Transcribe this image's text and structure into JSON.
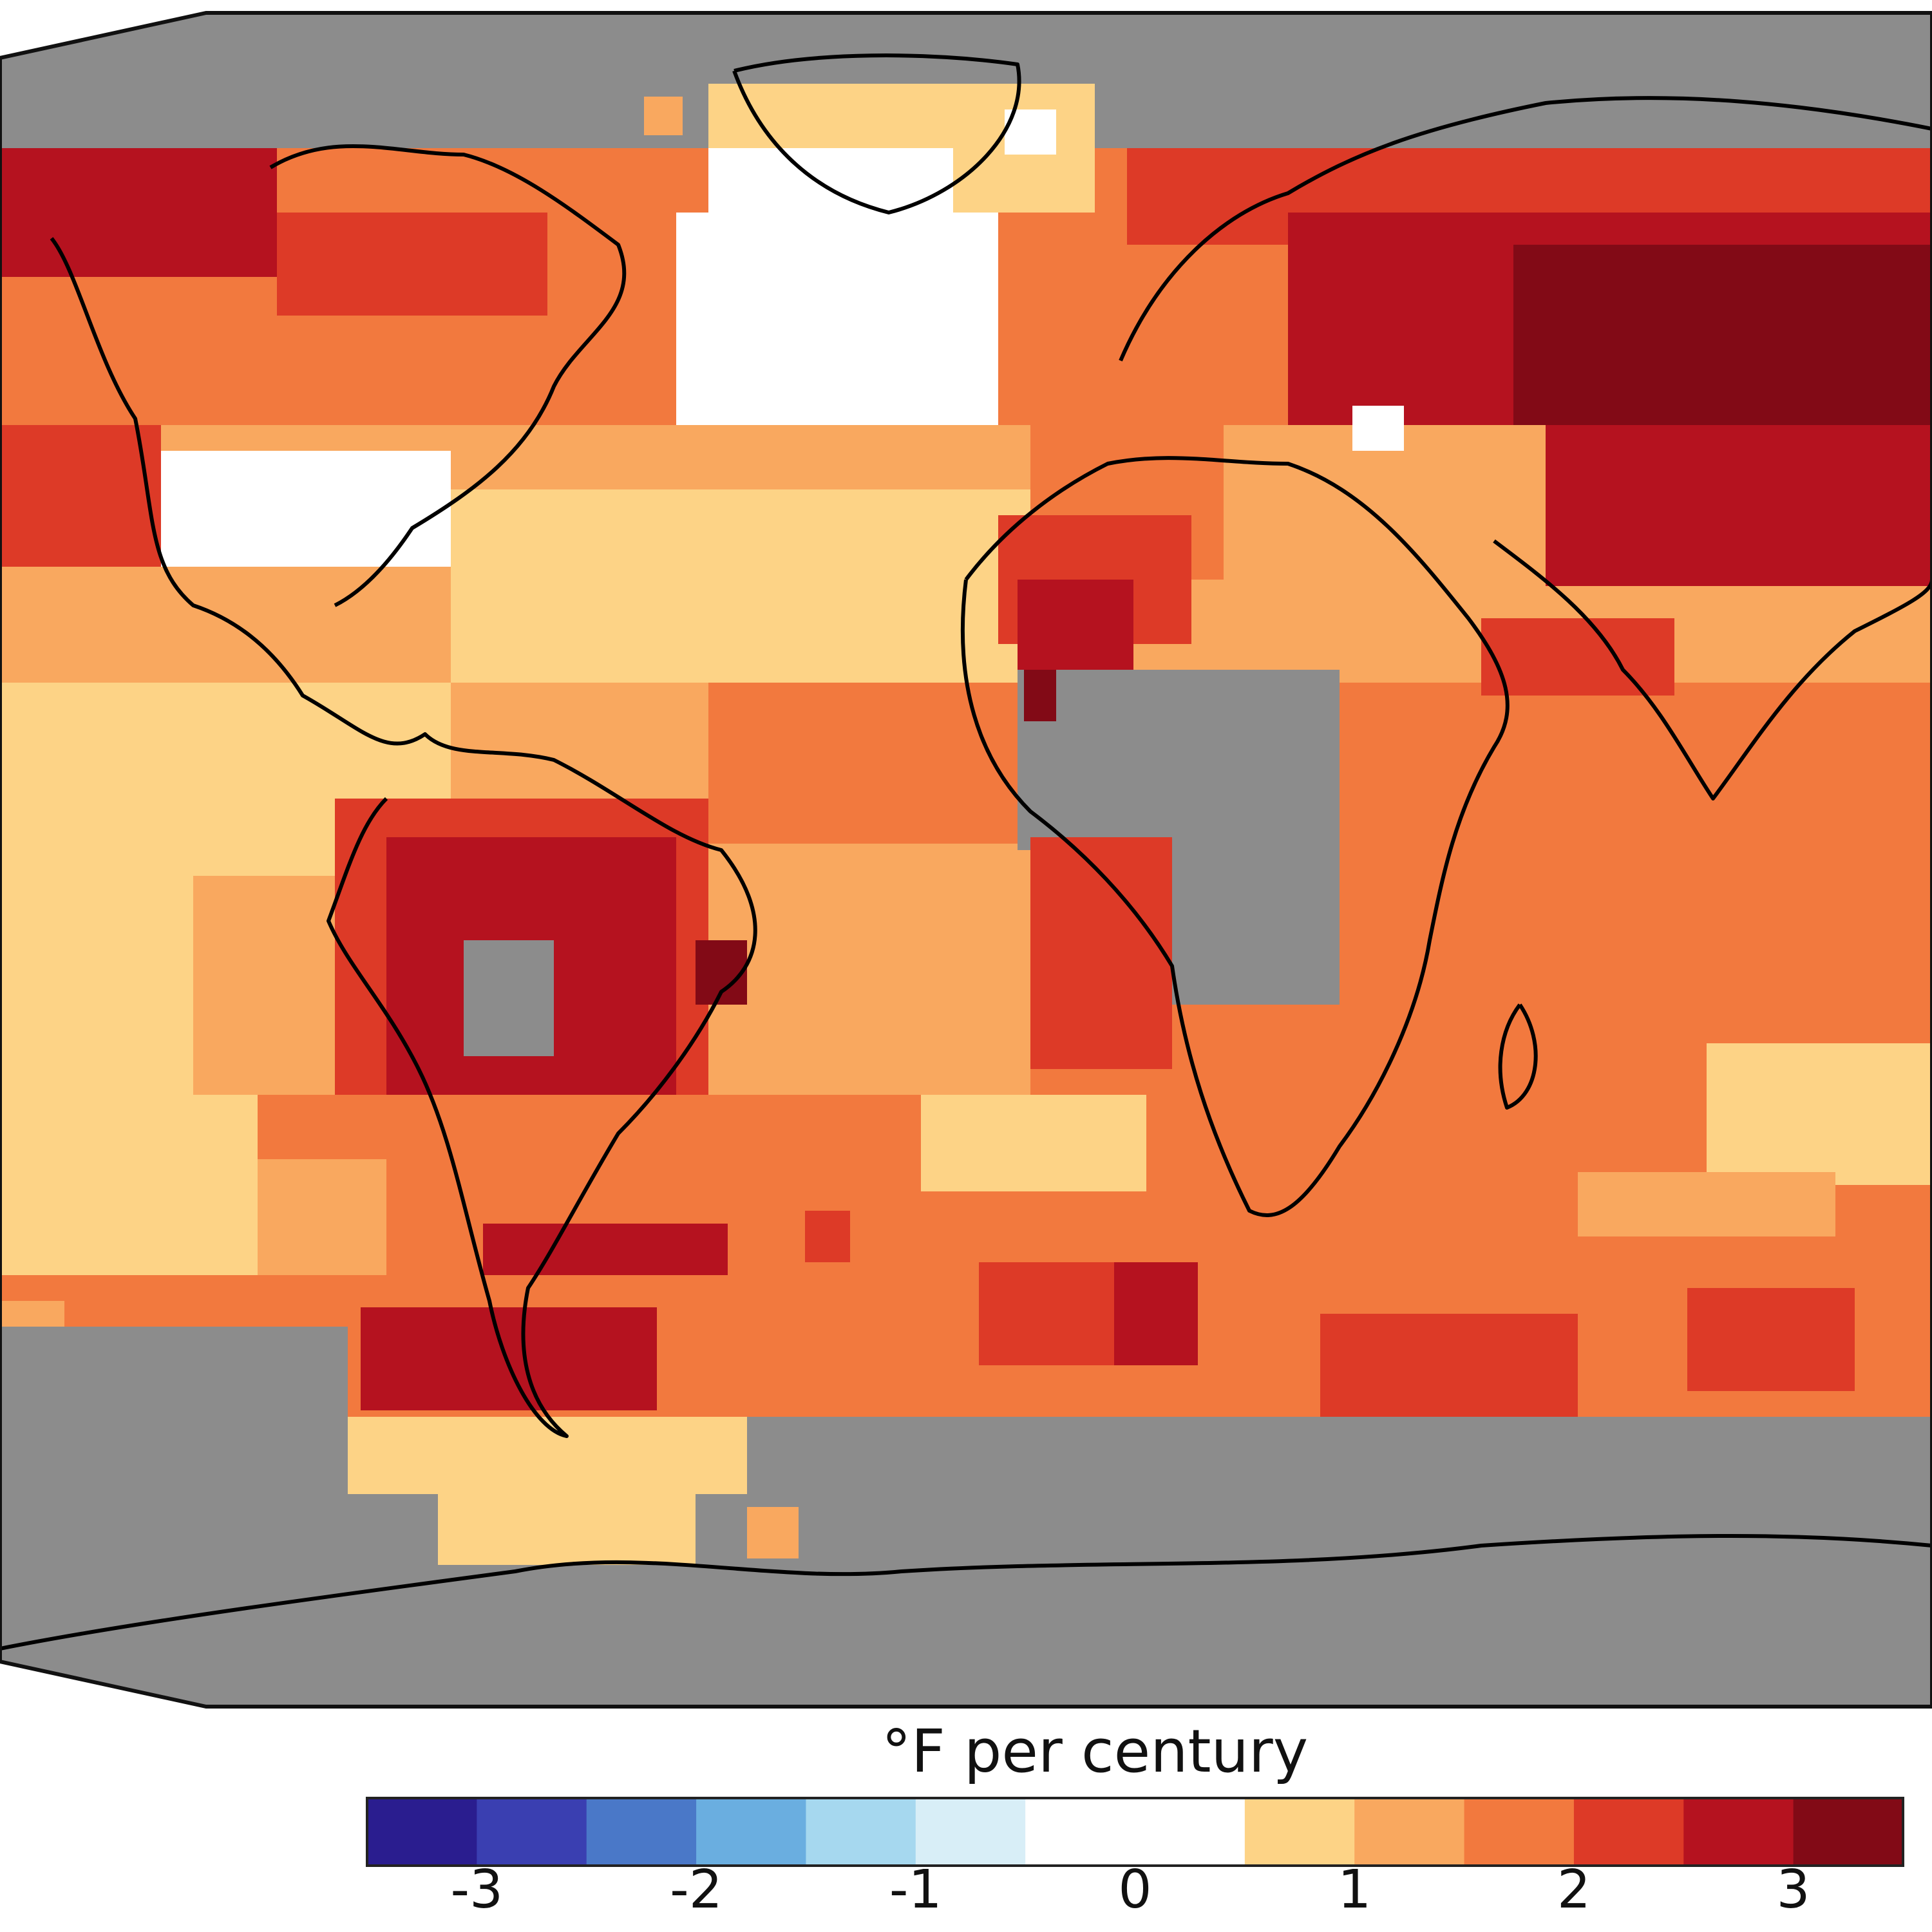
{
  "map": {
    "background": "#8c8c8c",
    "coastline_color": "#000000"
  },
  "legend": {
    "title": "°F per century",
    "colors": [
      "#2a1d8f",
      "#3a3fb1",
      "#4a78c8",
      "#6aaee0",
      "#a6d8ef",
      "#d8eef7",
      "#ffffff",
      "#ffffff",
      "#fdd386",
      "#f9a85f",
      "#f2793e",
      "#dd3a27",
      "#b5121f",
      "#820a16"
    ],
    "ticks": [
      "-3",
      "-2",
      "-1",
      "0",
      "1",
      "2",
      "3"
    ]
  }
}
